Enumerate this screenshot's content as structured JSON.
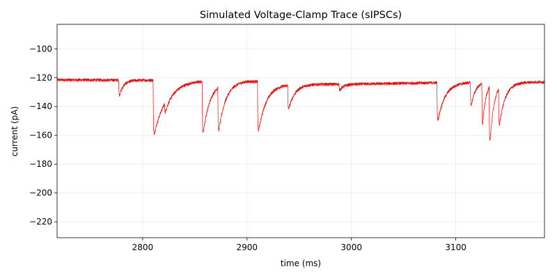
{
  "chart_data": {
    "type": "line",
    "title": "Simulated Voltage-Clamp Trace (sIPSCs)",
    "xlabel": "time (ms)",
    "ylabel": "current (pA)",
    "xlim": [
      2718,
      3185
    ],
    "ylim": [
      -231,
      -83
    ],
    "xticks": [
      2800,
      2900,
      3000,
      3100
    ],
    "yticks": [
      -220,
      -200,
      -180,
      -160,
      -140,
      -120,
      -100
    ],
    "grid": true,
    "series": [
      {
        "color": "#ff0000",
        "baseline": [
          [
            2718,
            -121.5
          ],
          [
            2900,
            -122
          ],
          [
            2940,
            -124.5
          ],
          [
            3000,
            -124.5
          ],
          [
            3080,
            -123.5
          ],
          [
            3120,
            -123
          ],
          [
            3185,
            -123
          ]
        ],
        "noise_pA": 1.0,
        "events": [
          {
            "t": 2777,
            "amplitude": -13,
            "decay_ms": 4
          },
          {
            "t": 2810,
            "amplitude": -41,
            "decay_ms": 12
          },
          {
            "t": 2821,
            "amplitude": -8,
            "decay_ms": 5
          },
          {
            "t": 2857,
            "amplitude": -41,
            "decay_ms": 7
          },
          {
            "t": 2872,
            "amplitude": -35,
            "decay_ms": 7
          },
          {
            "t": 2910,
            "amplitude": -39,
            "decay_ms": 8
          },
          {
            "t": 2939,
            "amplitude": -19,
            "decay_ms": 6
          },
          {
            "t": 2988,
            "amplitude": -5,
            "decay_ms": 4
          },
          {
            "t": 3082,
            "amplitude": -30,
            "decay_ms": 7
          },
          {
            "t": 3114,
            "amplitude": -20,
            "decay_ms": 4
          },
          {
            "t": 3125,
            "amplitude": -38,
            "decay_ms": 3
          },
          {
            "t": 3132,
            "amplitude": -48,
            "decay_ms": 4
          },
          {
            "t": 3141,
            "amplitude": -30,
            "decay_ms": 6
          }
        ]
      }
    ]
  }
}
